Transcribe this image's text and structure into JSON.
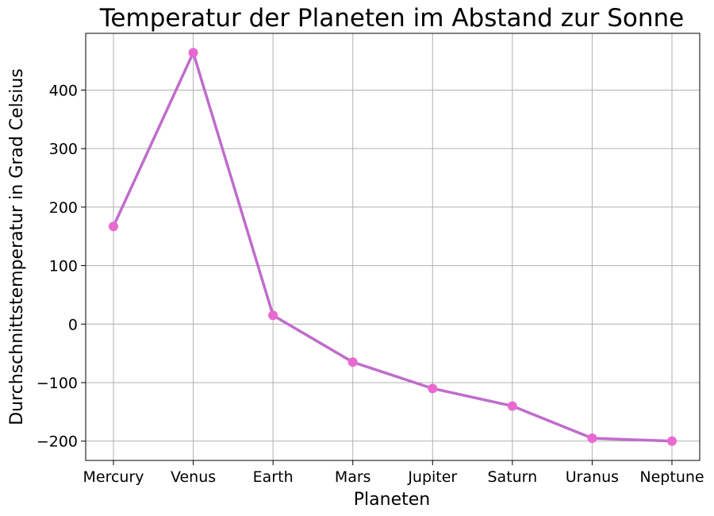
{
  "chart_data": {
    "type": "line",
    "title": "Temperatur der Planeten im Abstand zur Sonne",
    "xlabel": "Planeten",
    "ylabel": "Durchschnittstemperatur in Grad Celsius",
    "categories": [
      "Mercury",
      "Venus",
      "Earth",
      "Mars",
      "Jupiter",
      "Saturn",
      "Uranus",
      "Neptune"
    ],
    "series": [
      {
        "values": [
          167,
          464,
          15,
          -65,
          -110,
          -140,
          -195,
          -200
        ]
      }
    ],
    "yticks": [
      -200,
      -100,
      0,
      100,
      200,
      300,
      400
    ],
    "ylim": [
      -233,
      497
    ],
    "grid": true,
    "line_color": "#c06ccc",
    "marker_color": "#e86ad0"
  }
}
